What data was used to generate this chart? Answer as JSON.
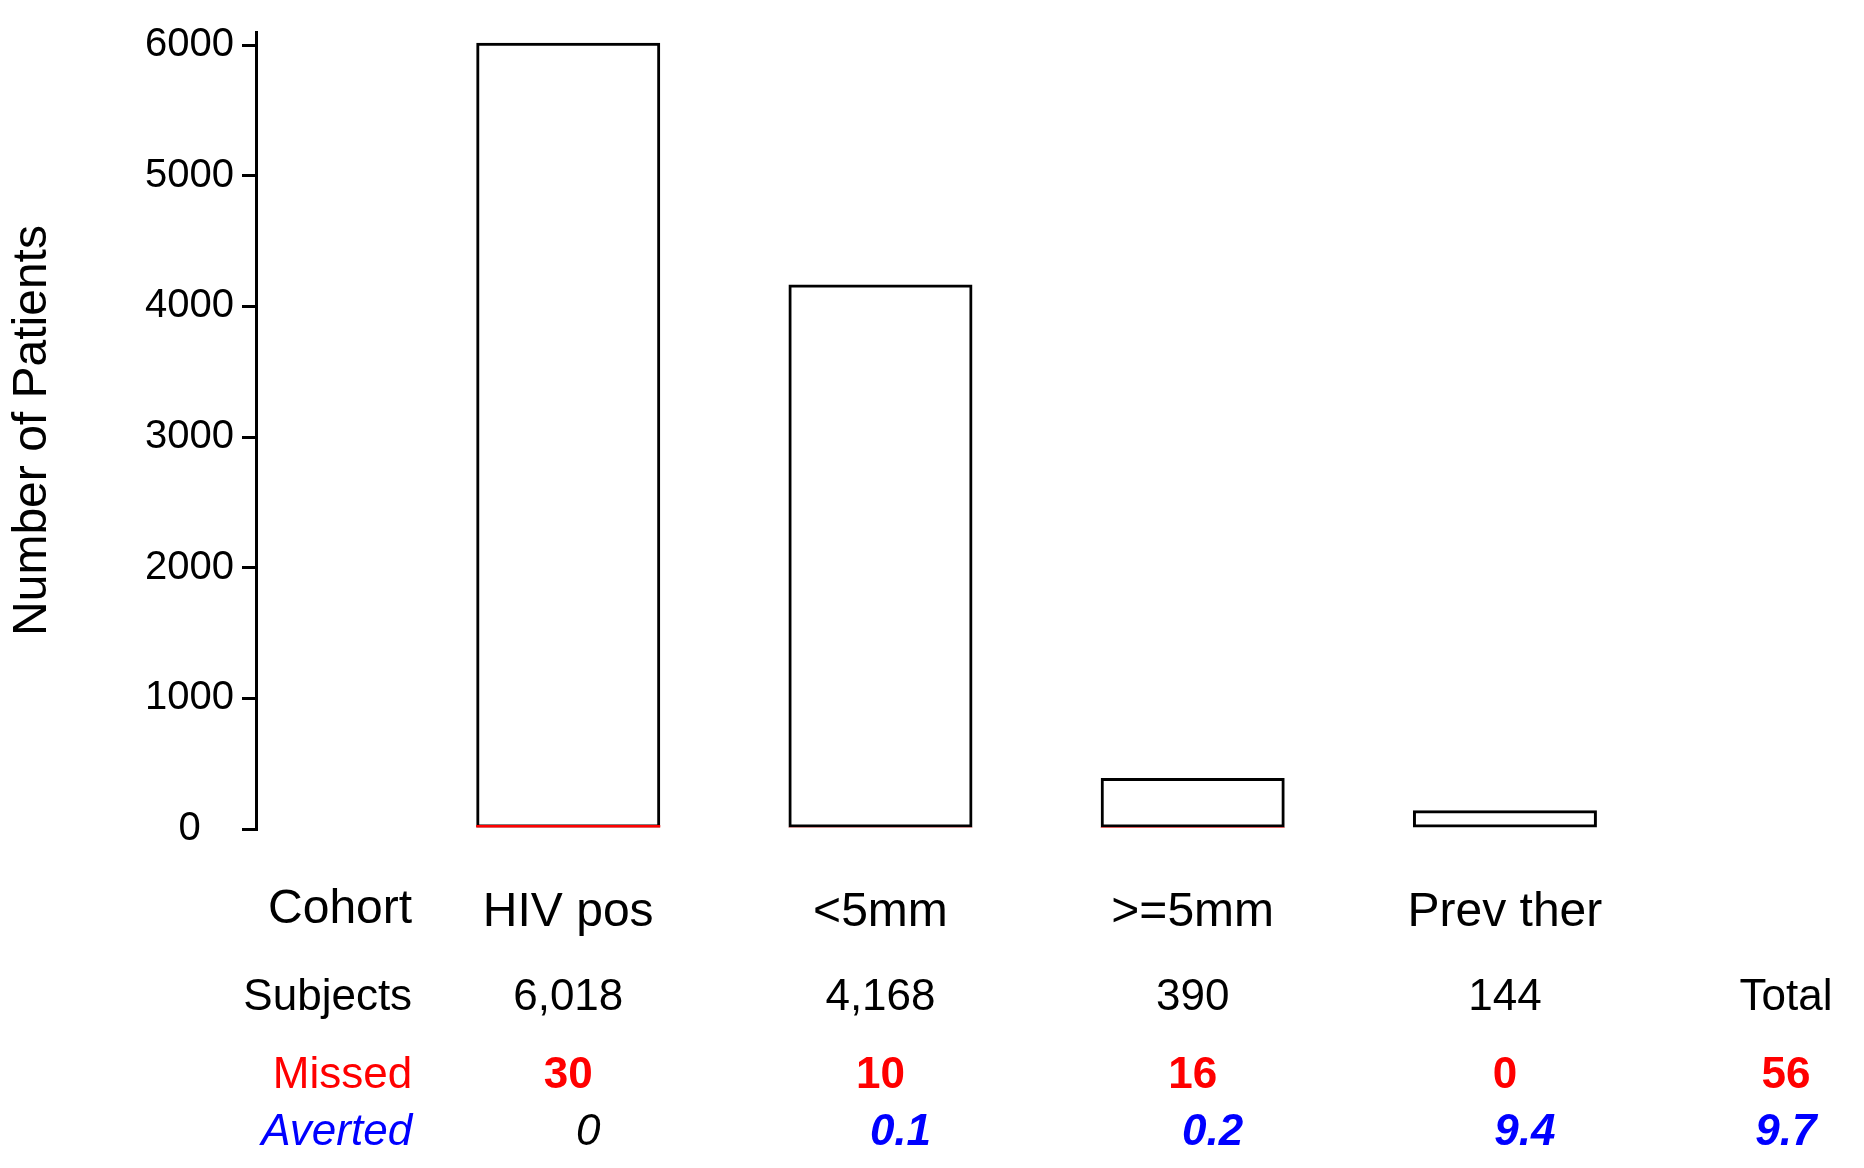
{
  "chart_data": {
    "type": "bar",
    "xlabel": "Cohort",
    "ylabel": "Number of Patients",
    "categories": [
      "HIV pos",
      "<5mm",
      ">=5mm",
      "Prev ther"
    ],
    "series": [
      {
        "name": "Subjects",
        "color": "#000000",
        "values": [
          6018,
          4168,
          390,
          144
        ],
        "value_labels": [
          "6,018",
          "4,168",
          "390",
          "144"
        ]
      },
      {
        "name": "Missed",
        "color": "#ff0000",
        "values": [
          30,
          10,
          16,
          0
        ],
        "value_labels": [
          "30",
          "10",
          "16",
          "0"
        ]
      }
    ],
    "ylim": [
      0,
      6100
    ],
    "yticks": [
      0,
      1000,
      2000,
      3000,
      4000,
      5000,
      6000
    ],
    "grid": false,
    "legend": false,
    "annotations": [
      "Total",
      "56",
      "Averted",
      "0",
      "0.1",
      "0.2",
      "9.4",
      "9.7"
    ]
  }
}
